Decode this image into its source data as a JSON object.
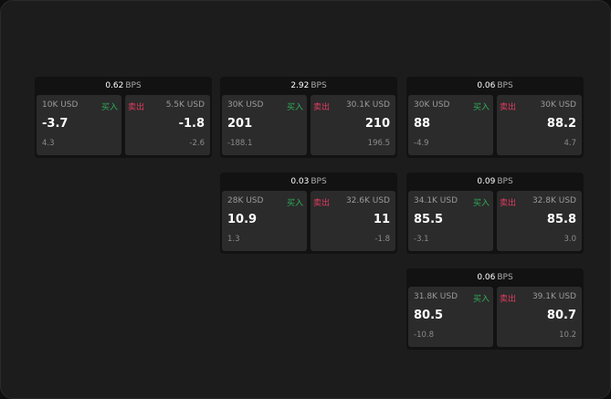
{
  "unit": "BPS",
  "buy_label": "买入",
  "sell_label": "卖出",
  "colors": {
    "buy": "#2fae5b",
    "sell": "#e23b60",
    "background": "#1c1c1c"
  },
  "cards": [
    {
      "spread": "0.62",
      "buy": {
        "amount": "10K USD",
        "price": "-3.7",
        "change": "4.3"
      },
      "sell": {
        "amount": "5.5K USD",
        "price": "-1.8",
        "change": "-2.6"
      }
    },
    {
      "spread": "2.92",
      "buy": {
        "amount": "30K USD",
        "price": "201",
        "change": "-188.1"
      },
      "sell": {
        "amount": "30.1K USD",
        "price": "210",
        "change": "196.5"
      }
    },
    {
      "spread": "0.06",
      "buy": {
        "amount": "30K USD",
        "price": "88",
        "change": "-4.9"
      },
      "sell": {
        "amount": "30K USD",
        "price": "88.2",
        "change": "4.7"
      }
    },
    {
      "spread": "0.03",
      "buy": {
        "amount": "28K USD",
        "price": "10.9",
        "change": "1.3"
      },
      "sell": {
        "amount": "32.6K USD",
        "price": "11",
        "change": "-1.8"
      }
    },
    {
      "spread": "0.09",
      "buy": {
        "amount": "34.1K USD",
        "price": "85.5",
        "change": "-3.1"
      },
      "sell": {
        "amount": "32.8K USD",
        "price": "85.8",
        "change": "3.0"
      }
    },
    {
      "spread": "0.06",
      "buy": {
        "amount": "31.8K USD",
        "price": "80.5",
        "change": "-10.8"
      },
      "sell": {
        "amount": "39.1K USD",
        "price": "80.7",
        "change": "10.2"
      }
    }
  ]
}
